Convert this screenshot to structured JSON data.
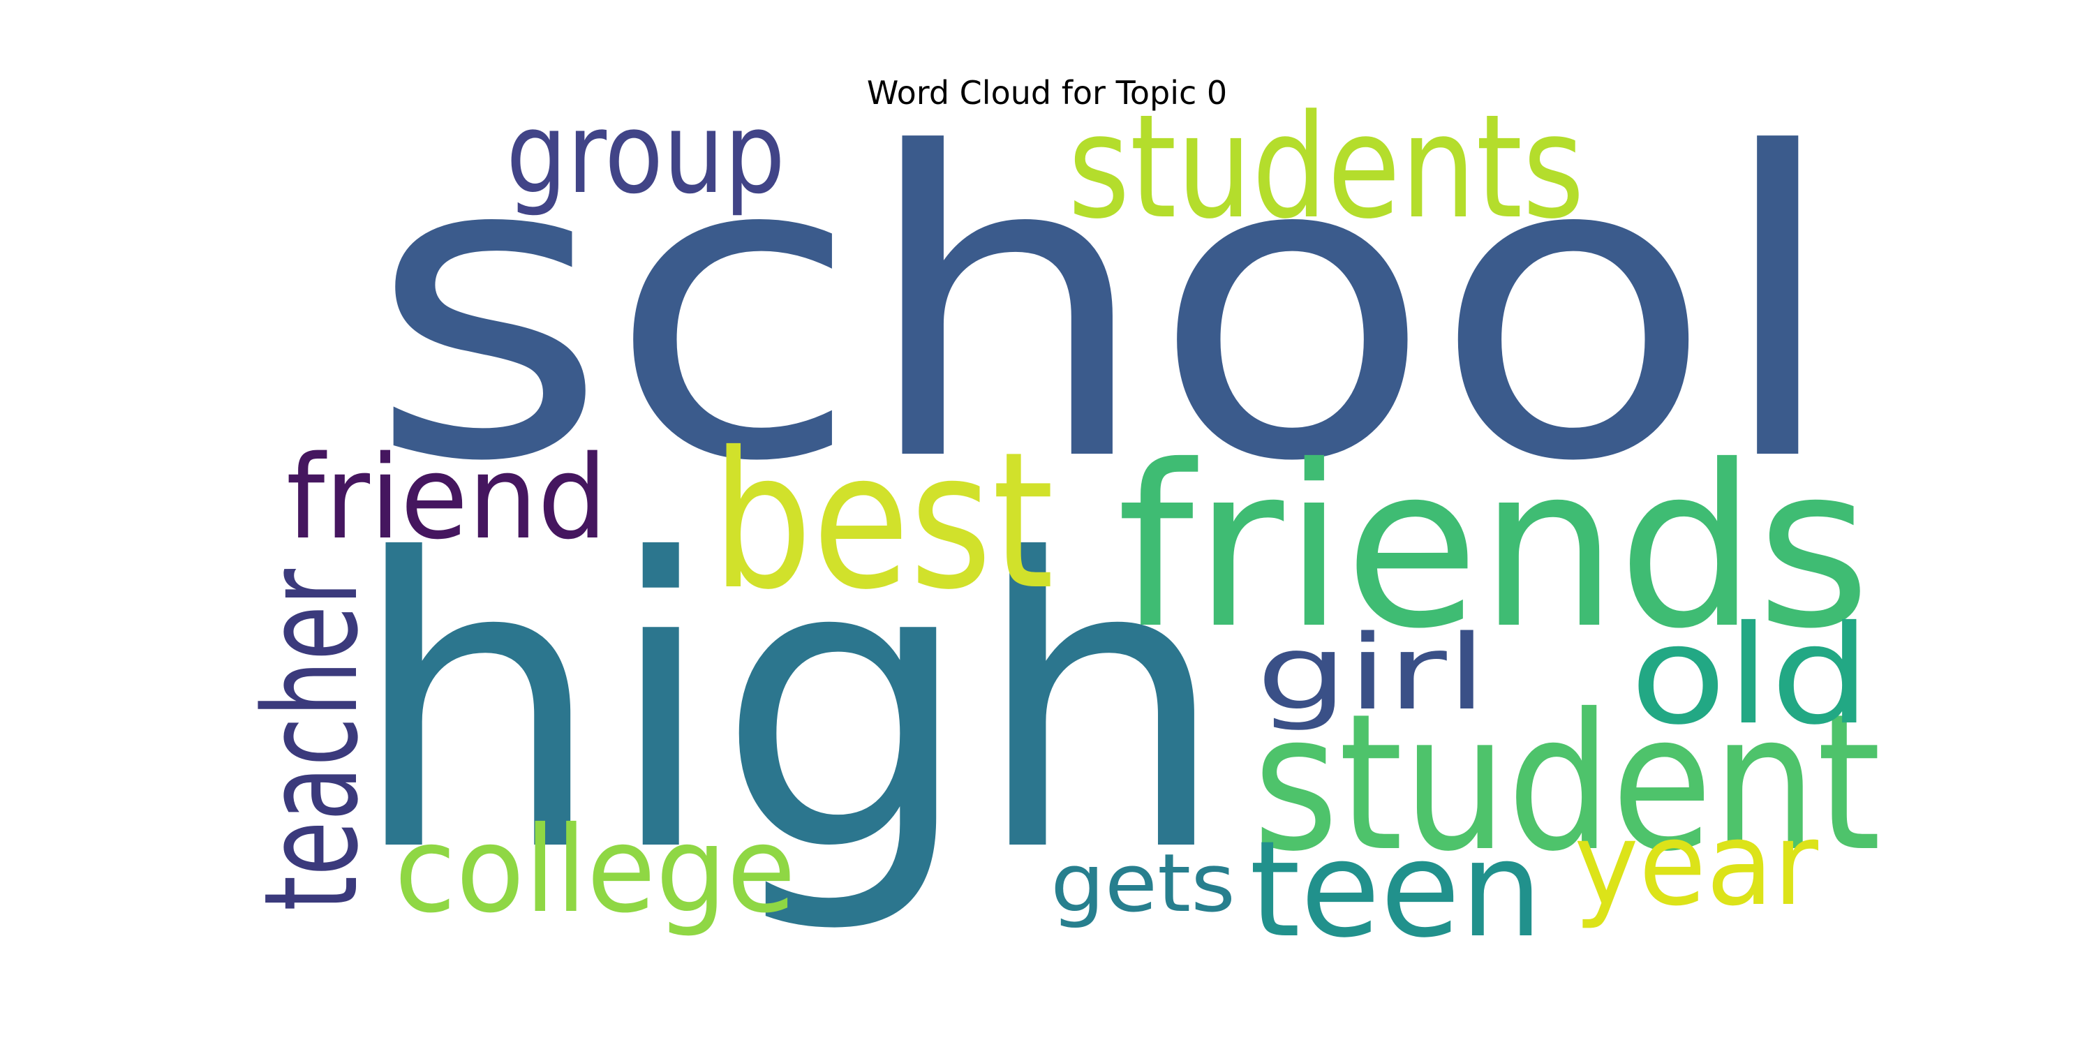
{
  "chart_data": {
    "type": "word_cloud",
    "title": "Word Cloud for Topic 0",
    "words": [
      {
        "text": "school",
        "weight": 1.0,
        "color": "#3b5b8c"
      },
      {
        "text": "high",
        "weight": 0.96,
        "color": "#2c768e"
      },
      {
        "text": "friends",
        "weight": 0.53,
        "color": "#3fbc73"
      },
      {
        "text": "best",
        "weight": 0.45,
        "color": "#d1e12b"
      },
      {
        "text": "student",
        "weight": 0.45,
        "color": "#4ec36b"
      },
      {
        "text": "students",
        "weight": 0.35,
        "color": "#b4dd2c"
      },
      {
        "text": "old",
        "weight": 0.33,
        "color": "#22a884"
      },
      {
        "text": "teen",
        "weight": 0.32,
        "color": "#21918c"
      },
      {
        "text": "teacher",
        "weight": 0.3,
        "color": "#3b3a7c"
      },
      {
        "text": "college",
        "weight": 0.28,
        "color": "#8fd744"
      },
      {
        "text": "year",
        "weight": 0.28,
        "color": "#dce319"
      },
      {
        "text": "friend",
        "weight": 0.27,
        "color": "#45165f"
      },
      {
        "text": "group",
        "weight": 0.27,
        "color": "#414487"
      },
      {
        "text": "girl",
        "weight": 0.25,
        "color": "#3a5087"
      },
      {
        "text": "gets",
        "weight": 0.19,
        "color": "#277f8e"
      }
    ]
  }
}
